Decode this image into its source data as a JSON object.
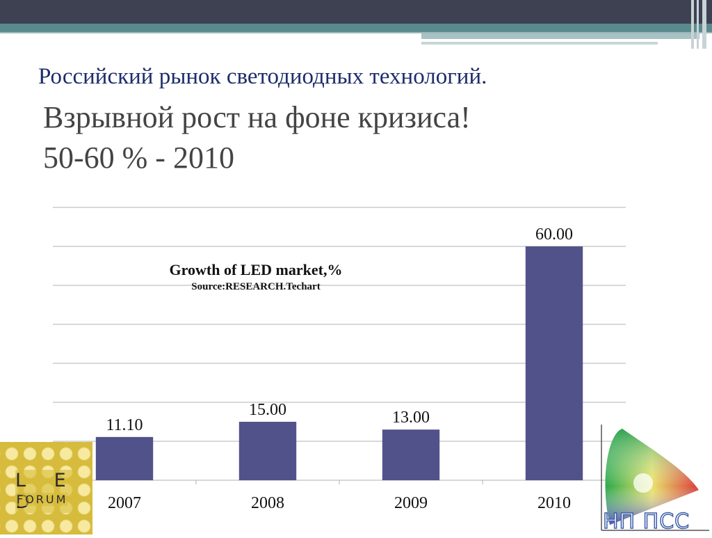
{
  "slide": {
    "title_line1": "Российский рынок светодиодных технологий.",
    "title_line2": "Взрывной рост на фоне кризиса!",
    "title_line3": "50-60 %  - 2010"
  },
  "chart_data": {
    "type": "bar",
    "title": "Growth of LED market,%",
    "subtitle": "Source:RESEARCH.Techart",
    "categories": [
      "2007",
      "2008",
      "2009",
      "2010"
    ],
    "values": [
      11.1,
      15.0,
      13.0,
      60.0
    ],
    "data_labels": [
      "11.10",
      "15.00",
      "13.00",
      "60.00"
    ],
    "ylim": [
      0,
      70
    ],
    "grid": true,
    "legend": "none",
    "bar_color": "#52528a",
    "grid_color": "#b0b0b0"
  },
  "logos": {
    "left": {
      "icon": "led-forum-logo",
      "line1": "L E D",
      "line2": "FORUM"
    },
    "right": {
      "icon": "np-pss-chromaticity-logo",
      "text": "НП ПСС"
    }
  },
  "colors": {
    "title_blue": "#1d2d6a",
    "subtitle_gray": "#444444",
    "header_dark": "#3e4152",
    "header_teal": "#5b8a8e"
  }
}
